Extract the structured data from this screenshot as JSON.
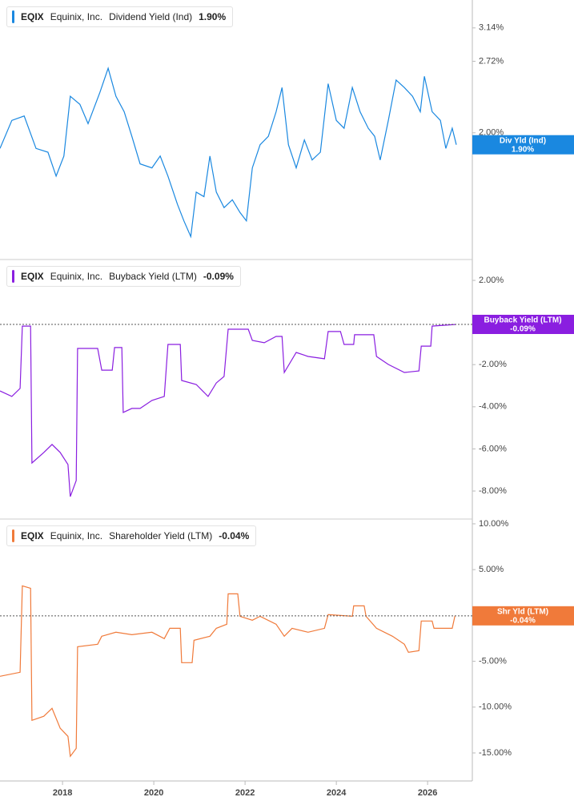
{
  "chart_data": [
    {
      "type": "line",
      "ticker": "EQIX",
      "company": "Equinix, Inc.",
      "metric": "Dividend Yield (Ind)",
      "log_scale": true,
      "current_line": false,
      "x": [
        2016.63,
        2016.89,
        2017.16,
        2017.42,
        2017.68,
        2017.86,
        2018.03,
        2018.17,
        2018.38,
        2018.56,
        2018.82,
        2019.0,
        2019.17,
        2019.35,
        2019.52,
        2019.7,
        2019.96,
        2020.14,
        2020.31,
        2020.52,
        2020.66,
        2020.81,
        2020.93,
        2021.1,
        2021.23,
        2021.37,
        2021.54,
        2021.72,
        2021.89,
        2022.03,
        2022.16,
        2022.33,
        2022.51,
        2022.68,
        2022.81,
        2022.95,
        2023.12,
        2023.3,
        2023.47,
        2023.65,
        2023.82,
        2024.0,
        2024.17,
        2024.35,
        2024.52,
        2024.7,
        2024.84,
        2024.96,
        2025.14,
        2025.31,
        2025.49,
        2025.67,
        2025.84,
        2025.93,
        2026.1,
        2026.28,
        2026.4,
        2026.54,
        2026.63
      ],
      "series": [
        {
          "name": "Div Yld (Ind)",
          "color": "#1a88e0",
          "current": {
            "value": 1.9,
            "label": "1.90%"
          },
          "values": [
            1.87,
            2.11,
            2.15,
            1.87,
            1.84,
            1.66,
            1.81,
            2.34,
            2.26,
            2.08,
            2.38,
            2.64,
            2.34,
            2.19,
            1.97,
            1.75,
            1.72,
            1.81,
            1.66,
            1.47,
            1.37,
            1.28,
            1.55,
            1.52,
            1.81,
            1.55,
            1.45,
            1.5,
            1.42,
            1.37,
            1.72,
            1.9,
            1.97,
            2.19,
            2.43,
            1.9,
            1.72,
            1.94,
            1.78,
            1.84,
            2.47,
            2.11,
            2.04,
            2.43,
            2.19,
            2.04,
            1.97,
            1.78,
            2.11,
            2.51,
            2.43,
            2.34,
            2.19,
            2.55,
            2.19,
            2.11,
            1.87,
            2.04,
            1.9
          ]
        }
      ],
      "xlim": [
        2016.63,
        2026.98
      ],
      "ylim": [
        1.16,
        3.54
      ],
      "yticks": [
        {
          "value": 3.14,
          "label": "3.14%"
        },
        {
          "value": 2.72,
          "label": "2.72%"
        },
        {
          "value": 2.0,
          "label": "2.00%"
        }
      ]
    },
    {
      "type": "line",
      "ticker": "EQIX",
      "company": "Equinix, Inc.",
      "metric": "Buyback Yield (LTM)",
      "log_scale": false,
      "current_line": true,
      "x": [
        2016.63,
        2016.89,
        2017.07,
        2017.12,
        2017.3,
        2017.33,
        2017.59,
        2017.77,
        2017.95,
        2018.12,
        2018.17,
        2018.3,
        2018.33,
        2018.77,
        2018.86,
        2019.09,
        2019.14,
        2019.3,
        2019.33,
        2019.52,
        2019.7,
        2019.96,
        2020.23,
        2020.31,
        2020.58,
        2020.61,
        2020.93,
        2021.19,
        2021.37,
        2021.54,
        2021.63,
        2022.07,
        2022.16,
        2022.42,
        2022.68,
        2022.81,
        2022.86,
        2023.12,
        2023.38,
        2023.74,
        2023.82,
        2024.09,
        2024.17,
        2024.38,
        2024.4,
        2024.82,
        2024.88,
        2025.14,
        2025.49,
        2025.81,
        2025.86,
        2026.07,
        2026.1,
        2026.63
      ],
      "series": [
        {
          "name": "Buyback Yield (LTM)",
          "color": "#8a1ee0",
          "current": {
            "value": -0.09,
            "label": "-0.09%"
          },
          "values": [
            -3.25,
            -3.51,
            -3.13,
            -0.17,
            -0.17,
            -6.67,
            -6.17,
            -5.79,
            -6.17,
            -6.74,
            -8.26,
            -7.5,
            -1.23,
            -1.23,
            -2.26,
            -2.26,
            -1.19,
            -1.19,
            -4.27,
            -4.08,
            -4.08,
            -3.7,
            -3.51,
            -1.04,
            -1.04,
            -2.75,
            -2.94,
            -3.51,
            -2.87,
            -2.56,
            -0.32,
            -0.32,
            -0.85,
            -0.96,
            -0.66,
            -0.66,
            -2.37,
            -1.42,
            -1.61,
            -1.72,
            -0.43,
            -0.43,
            -1.04,
            -1.04,
            -0.58,
            -0.58,
            -1.61,
            -1.99,
            -2.37,
            -2.3,
            -1.12,
            -1.12,
            -0.17,
            -0.09
          ]
        }
      ],
      "xlim": [
        2016.63,
        2026.98
      ],
      "ylim": [
        -9.33,
        2.99
      ],
      "yticks": [
        {
          "value": 2,
          "label": "2.00%"
        },
        {
          "value": -2,
          "label": "-2.00%"
        },
        {
          "value": -4,
          "label": "-4.00%"
        },
        {
          "value": -6,
          "label": "-6.00%"
        },
        {
          "value": -8,
          "label": "-8.00%"
        }
      ]
    },
    {
      "type": "line",
      "ticker": "EQIX",
      "company": "Equinix, Inc.",
      "metric": "Shareholder Yield (LTM)",
      "log_scale": false,
      "current_line": true,
      "x": [
        2016.63,
        2017.07,
        2017.12,
        2017.3,
        2017.33,
        2017.59,
        2017.77,
        2017.95,
        2018.12,
        2018.17,
        2018.3,
        2018.33,
        2018.77,
        2018.86,
        2019.17,
        2019.52,
        2019.96,
        2020.23,
        2020.35,
        2020.58,
        2020.61,
        2020.84,
        2020.88,
        2021.23,
        2021.37,
        2021.6,
        2021.63,
        2021.84,
        2021.89,
        2022.16,
        2022.33,
        2022.68,
        2022.86,
        2023.03,
        2023.38,
        2023.74,
        2023.82,
        2024.35,
        2024.38,
        2024.61,
        2024.65,
        2024.88,
        2025.23,
        2025.49,
        2025.58,
        2025.81,
        2025.86,
        2026.1,
        2026.14,
        2026.54,
        2026.6
      ],
      "series": [
        {
          "name": "Shr Yld (LTM)",
          "color": "#f07a3a",
          "current": {
            "value": -0.04,
            "label": "-0.04%"
          },
          "values": [
            -6.64,
            -6.2,
            3.23,
            2.97,
            -11.44,
            -11.0,
            -10.13,
            -12.31,
            -13.19,
            -15.37,
            -14.5,
            -3.41,
            -3.14,
            -2.27,
            -1.83,
            -2.1,
            -1.83,
            -2.53,
            -1.4,
            -1.4,
            -5.15,
            -5.15,
            -2.71,
            -2.27,
            -1.4,
            -0.96,
            2.36,
            2.36,
            -0.09,
            -0.52,
            -0.09,
            -0.96,
            -2.27,
            -1.4,
            -1.83,
            -1.4,
            0.09,
            -0.09,
            1.05,
            1.05,
            -0.09,
            -1.4,
            -2.27,
            -3.14,
            -4.02,
            -3.84,
            -0.61,
            -0.61,
            -1.4,
            -1.4,
            -0.04
          ]
        }
      ],
      "xlim": [
        2016.63,
        2026.98
      ],
      "ylim": [
        -18.06,
        10.52
      ],
      "yticks": [
        {
          "value": 10,
          "label": "10.00%"
        },
        {
          "value": 5,
          "label": "5.00%"
        },
        {
          "value": -5,
          "label": "-5.00%"
        },
        {
          "value": -10,
          "label": "-10.00%"
        },
        {
          "value": -15,
          "label": "-15.00%"
        }
      ],
      "xticks": [
        2018,
        2020,
        2022,
        2024,
        2026
      ]
    }
  ]
}
